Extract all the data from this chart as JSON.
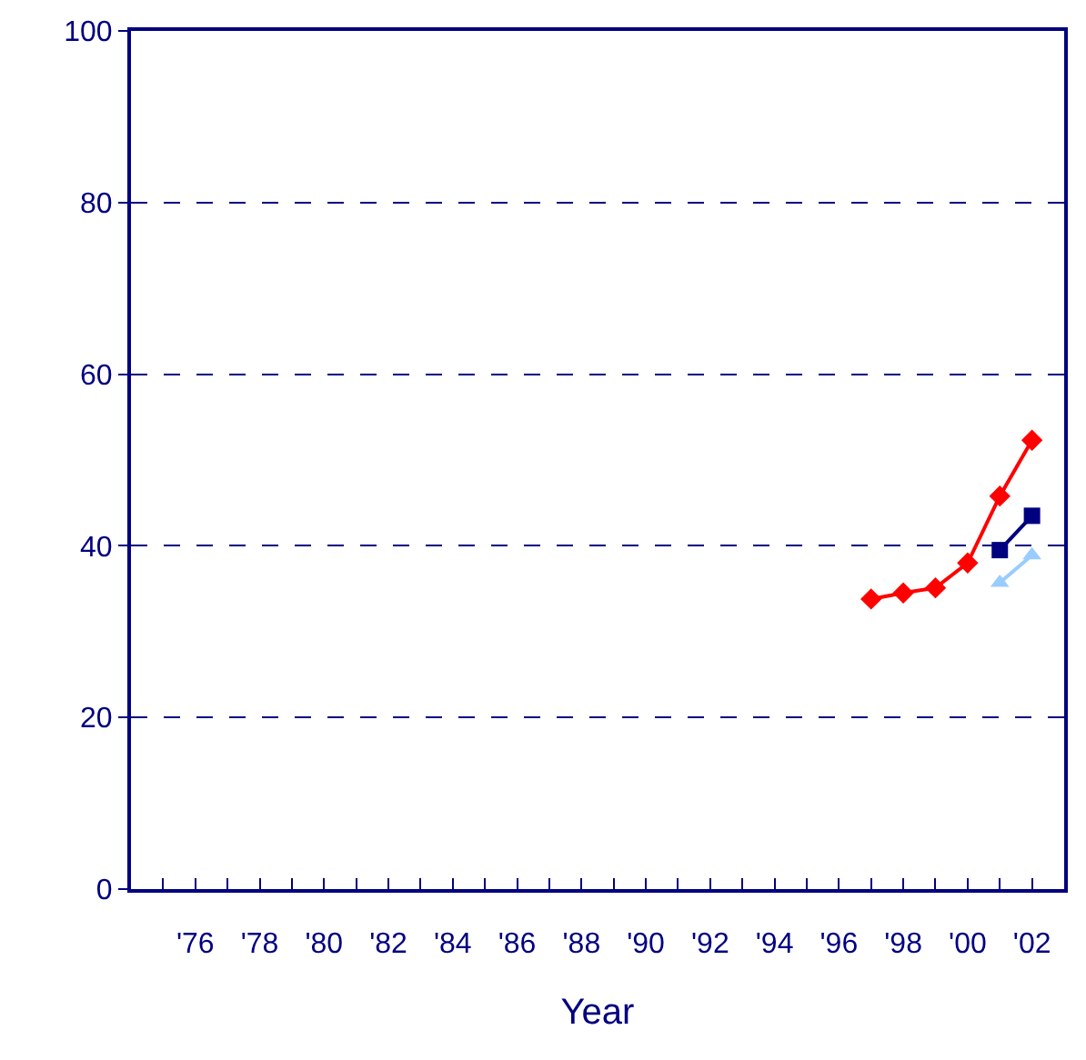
{
  "chart_data": {
    "type": "line",
    "xlabel": "Year",
    "x": [
      1997,
      1998,
      1999,
      2000,
      2001,
      2002
    ],
    "series": [
      {
        "color": "#ff0000",
        "marker": "diamond",
        "values": [
          33.8,
          34.5,
          35.1,
          38.0,
          45.8,
          52.3
        ]
      },
      {
        "color": "#000080",
        "marker": "square",
        "values": [
          null,
          null,
          null,
          null,
          39.5,
          43.5
        ]
      },
      {
        "color": "#99ccff",
        "marker": "triangle",
        "values": [
          null,
          null,
          null,
          null,
          35.7,
          38.9
        ]
      }
    ],
    "xlim": [
      1974,
      2003
    ],
    "xticks": [
      {
        "value": 1975,
        "label": null
      },
      {
        "value": 1976,
        "label": "'76"
      },
      {
        "value": 1977,
        "label": null
      },
      {
        "value": 1978,
        "label": "'78"
      },
      {
        "value": 1979,
        "label": null
      },
      {
        "value": 1980,
        "label": "'80"
      },
      {
        "value": 1981,
        "label": null
      },
      {
        "value": 1982,
        "label": "'82"
      },
      {
        "value": 1983,
        "label": null
      },
      {
        "value": 1984,
        "label": "'84"
      },
      {
        "value": 1985,
        "label": null
      },
      {
        "value": 1986,
        "label": "'86"
      },
      {
        "value": 1987,
        "label": null
      },
      {
        "value": 1988,
        "label": "'88"
      },
      {
        "value": 1989,
        "label": null
      },
      {
        "value": 1990,
        "label": "'90"
      },
      {
        "value": 1991,
        "label": null
      },
      {
        "value": 1992,
        "label": "'92"
      },
      {
        "value": 1993,
        "label": null
      },
      {
        "value": 1994,
        "label": "'94"
      },
      {
        "value": 1995,
        "label": null
      },
      {
        "value": 1996,
        "label": "'96"
      },
      {
        "value": 1997,
        "label": null
      },
      {
        "value": 1998,
        "label": "'98"
      },
      {
        "value": 1999,
        "label": null
      },
      {
        "value": 2000,
        "label": "'00"
      },
      {
        "value": 2001,
        "label": null
      },
      {
        "value": 2002,
        "label": "'02"
      }
    ],
    "ylim": [
      0,
      100
    ],
    "yticks": [
      0,
      20,
      40,
      60,
      80,
      100
    ],
    "grid": "y",
    "line_style": "solid"
  }
}
